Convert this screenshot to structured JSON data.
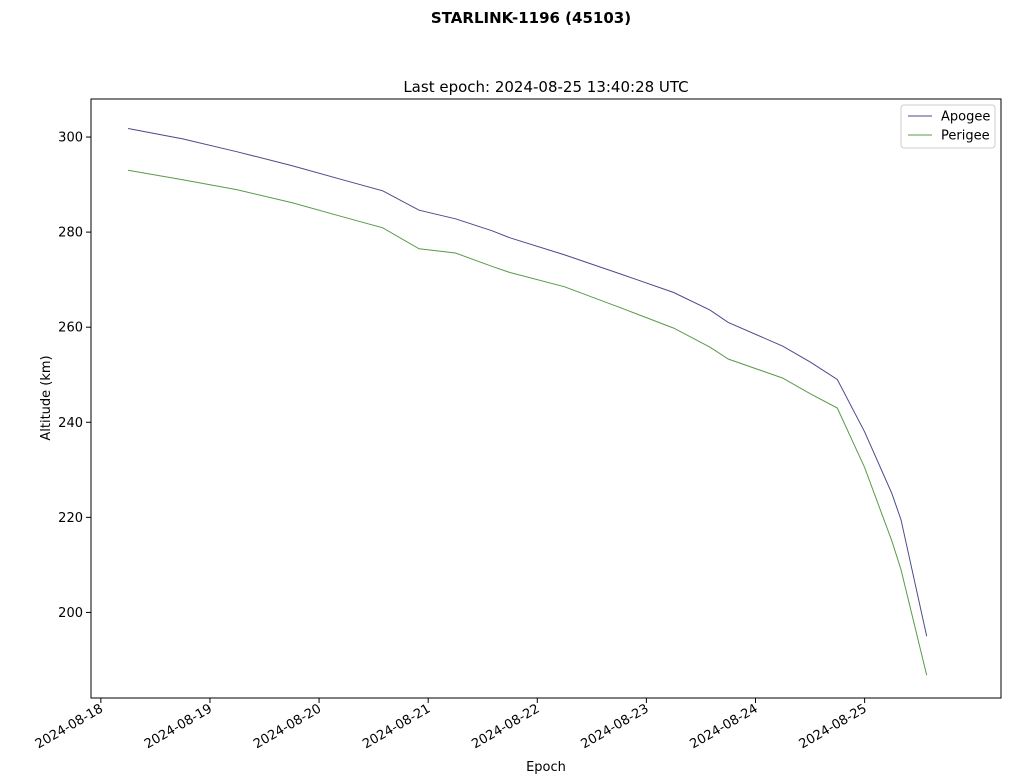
{
  "chart_data": {
    "type": "line",
    "suptitle": "STARLINK-1196 (45103)",
    "title": "Last epoch: 2024-08-25 13:40:28 UTC",
    "xlabel": "Epoch",
    "ylabel": "Altitude (km)",
    "xlim": [
      "2024-08-17 21:50",
      "2024-08-26 06:00"
    ],
    "ylim": [
      182,
      308
    ],
    "x_ticks": [
      "2024-08-18",
      "2024-08-19",
      "2024-08-20",
      "2024-08-21",
      "2024-08-22",
      "2024-08-23",
      "2024-08-24",
      "2024-08-25"
    ],
    "y_ticks": [
      200,
      220,
      240,
      260,
      280,
      300
    ],
    "grid": false,
    "legend_position": "upper right",
    "series": [
      {
        "name": "Apogee",
        "color": "#4a4a8c",
        "points": [
          [
            "2024-08-18 06:00",
            301.8
          ],
          [
            "2024-08-18 18:00",
            299.6
          ],
          [
            "2024-08-19 06:00",
            296.9
          ],
          [
            "2024-08-19 18:00",
            294.0
          ],
          [
            "2024-08-20 06:00",
            290.8
          ],
          [
            "2024-08-20 14:00",
            288.7
          ],
          [
            "2024-08-20 22:00",
            284.6
          ],
          [
            "2024-08-21 06:00",
            282.8
          ],
          [
            "2024-08-21 14:00",
            280.3
          ],
          [
            "2024-08-21 18:00",
            278.8
          ],
          [
            "2024-08-22 06:00",
            275.2
          ],
          [
            "2024-08-22 18:00",
            271.3
          ],
          [
            "2024-08-23 06:00",
            267.3
          ],
          [
            "2024-08-23 14:00",
            263.6
          ],
          [
            "2024-08-23 18:00",
            261.0
          ],
          [
            "2024-08-24 06:00",
            256.0
          ],
          [
            "2024-08-24 12:00",
            252.7
          ],
          [
            "2024-08-24 18:00",
            249.0
          ],
          [
            "2024-08-25 00:00",
            238.0
          ],
          [
            "2024-08-25 06:00",
            225.0
          ],
          [
            "2024-08-25 08:00",
            219.5
          ],
          [
            "2024-08-25 13:40",
            195.0
          ]
        ]
      },
      {
        "name": "Perigee",
        "color": "#5a9a4a",
        "points": [
          [
            "2024-08-18 06:00",
            293.0
          ],
          [
            "2024-08-18 18:00",
            291.0
          ],
          [
            "2024-08-19 06:00",
            288.9
          ],
          [
            "2024-08-19 18:00",
            286.2
          ],
          [
            "2024-08-20 06:00",
            283.0
          ],
          [
            "2024-08-20 14:00",
            280.9
          ],
          [
            "2024-08-20 22:00",
            276.5
          ],
          [
            "2024-08-21 06:00",
            275.6
          ],
          [
            "2024-08-21 14:00",
            272.8
          ],
          [
            "2024-08-21 18:00",
            271.5
          ],
          [
            "2024-08-22 06:00",
            268.5
          ],
          [
            "2024-08-22 18:00",
            264.2
          ],
          [
            "2024-08-23 06:00",
            259.8
          ],
          [
            "2024-08-23 14:00",
            255.8
          ],
          [
            "2024-08-23 18:00",
            253.3
          ],
          [
            "2024-08-24 06:00",
            249.3
          ],
          [
            "2024-08-24 12:00",
            246.0
          ],
          [
            "2024-08-24 18:00",
            243.0
          ],
          [
            "2024-08-25 00:00",
            230.5
          ],
          [
            "2024-08-25 06:00",
            215.0
          ],
          [
            "2024-08-25 08:00",
            209.0
          ],
          [
            "2024-08-25 13:40",
            186.8
          ]
        ]
      }
    ]
  }
}
